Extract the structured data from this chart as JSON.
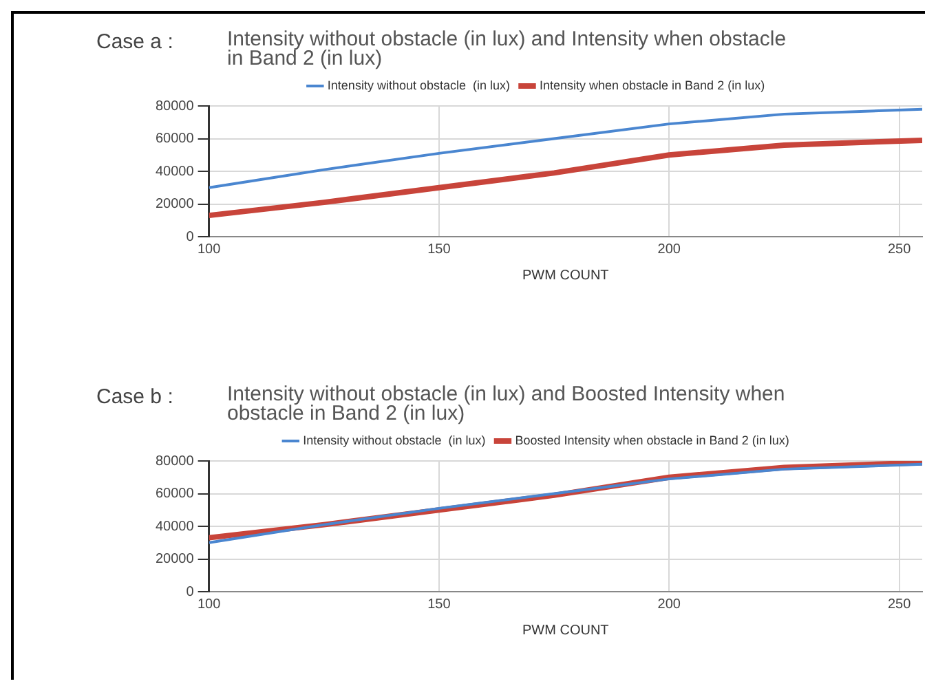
{
  "chart_data": [
    {
      "type": "line",
      "title": "Intensity without obstacle  (in lux) and Intensity when obstacle in Band 2 (in lux)",
      "annotations": [
        "Case a :"
      ],
      "xlabel": "PWM COUNT",
      "x": [
        100,
        125,
        150,
        175,
        200,
        225,
        255
      ],
      "series": [
        {
          "name": "Intensity without obstacle  (in lux)",
          "color": "#4a86d0",
          "values": [
            30000,
            41000,
            51000,
            60000,
            69000,
            75000,
            78000
          ]
        },
        {
          "name": "Intensity when obstacle in Band 2 (in lux)",
          "color": "#c8443a",
          "values": [
            13000,
            21000,
            30000,
            39000,
            50000,
            56000,
            59000
          ]
        }
      ],
      "xlim": [
        100,
        255
      ],
      "xticks": [
        100,
        150,
        200,
        250
      ],
      "ylim": [
        0,
        80000
      ],
      "yticks": [
        0,
        20000,
        40000,
        60000,
        80000
      ],
      "grid": true,
      "legend": "top",
      "marker": "none",
      "line_style": "solid"
    },
    {
      "type": "line",
      "title": "Intensity without obstacle  (in lux) and Boosted Intensity when obstacle in Band 2 (in lux)",
      "annotations": [
        "Case b :"
      ],
      "xlabel": "PWM COUNT",
      "x": [
        100,
        125,
        150,
        175,
        200,
        225,
        255
      ],
      "series": [
        {
          "name": "Intensity without obstacle  (in lux)",
          "color": "#4a86d0",
          "values": [
            30000,
            41000,
            51000,
            60000,
            69000,
            75000,
            78000
          ]
        },
        {
          "name": "Boosted Intensity when obstacle in Band 2 (in lux)",
          "color": "#c8443a",
          "values": [
            33000,
            41000,
            50000,
            59000,
            70000,
            76000,
            79000
          ]
        }
      ],
      "xlim": [
        100,
        255
      ],
      "xticks": [
        100,
        150,
        200,
        250
      ],
      "ylim": [
        0,
        80000
      ],
      "yticks": [
        0,
        20000,
        40000,
        60000,
        80000
      ],
      "grid": true,
      "legend": "top",
      "marker": "none",
      "line_style": "solid"
    }
  ]
}
